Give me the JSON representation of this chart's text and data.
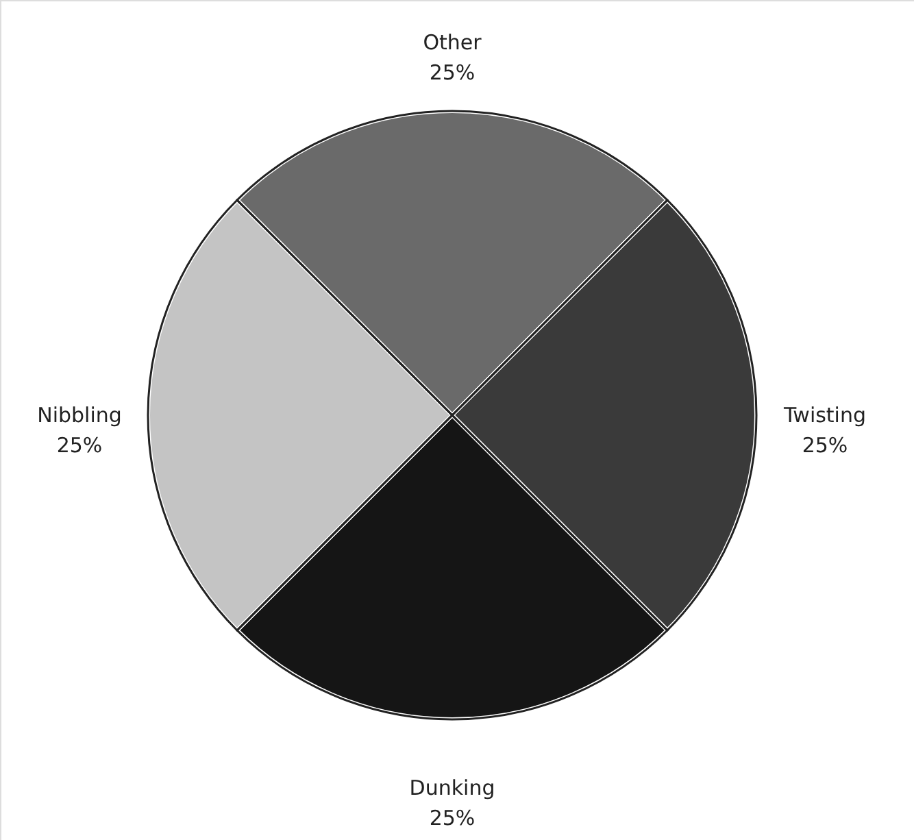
{
  "chart_data": {
    "type": "pie",
    "categories": [
      "Other",
      "Twisting",
      "Dunking",
      "Nibbling"
    ],
    "values": [
      25,
      25,
      25,
      25
    ],
    "value_labels": [
      "25%",
      "25%",
      "25%",
      "25%"
    ],
    "colors": [
      "#6a6a6a",
      "#3a3a3a",
      "#151515",
      "#c4c4c4"
    ]
  }
}
